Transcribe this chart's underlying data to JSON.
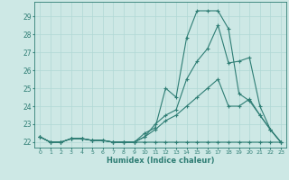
{
  "xlabel": "Humidex (Indice chaleur)",
  "ylabel": "",
  "bg_color": "#cde8e5",
  "grid_color": "#b0d8d4",
  "line_color": "#2e7d74",
  "xlim": [
    -0.5,
    23.5
  ],
  "ylim": [
    21.7,
    29.8
  ],
  "xtick_labels": [
    "0",
    "1",
    "2",
    "3",
    "4",
    "5",
    "6",
    "7",
    "8",
    "9",
    "10",
    "11",
    "12",
    "13",
    "14",
    "15",
    "16",
    "17",
    "18",
    "19",
    "20",
    "21",
    "22",
    "23"
  ],
  "ytick_labels": [
    "22",
    "23",
    "24",
    "25",
    "26",
    "27",
    "28",
    "29"
  ],
  "series": [
    [
      22.3,
      22.0,
      22.0,
      22.2,
      22.2,
      22.1,
      22.1,
      22.0,
      22.0,
      22.0,
      22.5,
      22.8,
      25.0,
      24.5,
      27.8,
      29.3,
      29.3,
      29.3,
      28.3,
      24.7,
      24.3,
      23.5,
      22.7,
      22.0
    ],
    [
      22.3,
      22.0,
      22.0,
      22.2,
      22.2,
      22.1,
      22.1,
      22.0,
      22.0,
      22.0,
      22.3,
      23.0,
      23.5,
      23.8,
      25.5,
      26.5,
      27.2,
      28.5,
      26.4,
      26.5,
      26.7,
      24.0,
      22.7,
      22.0
    ],
    [
      22.3,
      22.0,
      22.0,
      22.2,
      22.2,
      22.1,
      22.1,
      22.0,
      22.0,
      22.0,
      22.0,
      22.0,
      22.0,
      22.0,
      22.0,
      22.0,
      22.0,
      22.0,
      22.0,
      22.0,
      22.0,
      22.0,
      22.0,
      22.0
    ],
    [
      22.3,
      22.0,
      22.0,
      22.2,
      22.2,
      22.1,
      22.1,
      22.0,
      22.0,
      22.0,
      22.3,
      22.7,
      23.2,
      23.5,
      24.0,
      24.5,
      25.0,
      25.5,
      24.0,
      24.0,
      24.4,
      23.5,
      22.7,
      22.0
    ]
  ]
}
